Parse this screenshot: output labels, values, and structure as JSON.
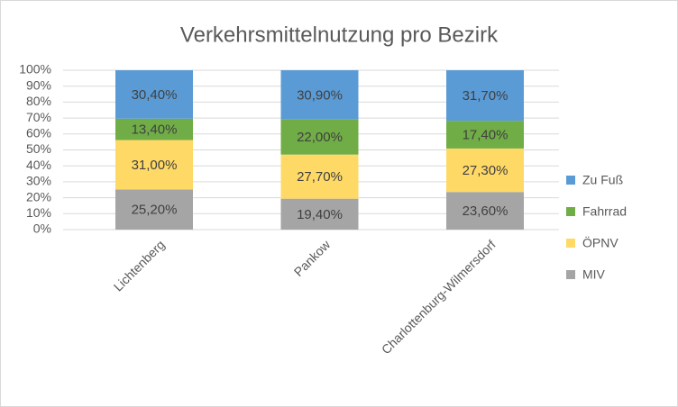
{
  "chart_data": {
    "type": "stacked_bar_100",
    "title": "Verkehrsmittelnutzung pro Bezirk",
    "categories": [
      "Lichtenberg",
      "Pankow",
      "Charlottenburg-Wilmersdorf"
    ],
    "series": [
      {
        "name": "MIV",
        "color": "#a5a5a5",
        "values": [
          25.2,
          19.4,
          23.6
        ],
        "value_labels": [
          "25,20%",
          "19,40%",
          "23,60%"
        ]
      },
      {
        "name": "ÖPNV",
        "color": "#ffd966",
        "values": [
          31.0,
          27.7,
          27.3
        ],
        "value_labels": [
          "31,00%",
          "27,70%",
          "27,30%"
        ]
      },
      {
        "name": "Fahrrad",
        "color": "#70ad47",
        "values": [
          13.4,
          22.0,
          17.4
        ],
        "value_labels": [
          "13,40%",
          "22,00%",
          "17,40%"
        ]
      },
      {
        "name": "Zu Fuß",
        "color": "#5b9bd5",
        "values": [
          30.4,
          30.9,
          31.7
        ],
        "value_labels": [
          "30,40%",
          "30,90%",
          "31,70%"
        ]
      }
    ],
    "ylim": [
      0,
      100
    ],
    "yticks": [
      {
        "value": 0,
        "label": "0%"
      },
      {
        "value": 10,
        "label": "10%"
      },
      {
        "value": 20,
        "label": "20%"
      },
      {
        "value": 30,
        "label": "30%"
      },
      {
        "value": 40,
        "label": "40%"
      },
      {
        "value": 50,
        "label": "50%"
      },
      {
        "value": 60,
        "label": "60%"
      },
      {
        "value": 70,
        "label": "70%"
      },
      {
        "value": 80,
        "label": "80%"
      },
      {
        "value": 90,
        "label": "90%"
      },
      {
        "value": 100,
        "label": "100%"
      }
    ],
    "grid": true,
    "legend": "right"
  }
}
